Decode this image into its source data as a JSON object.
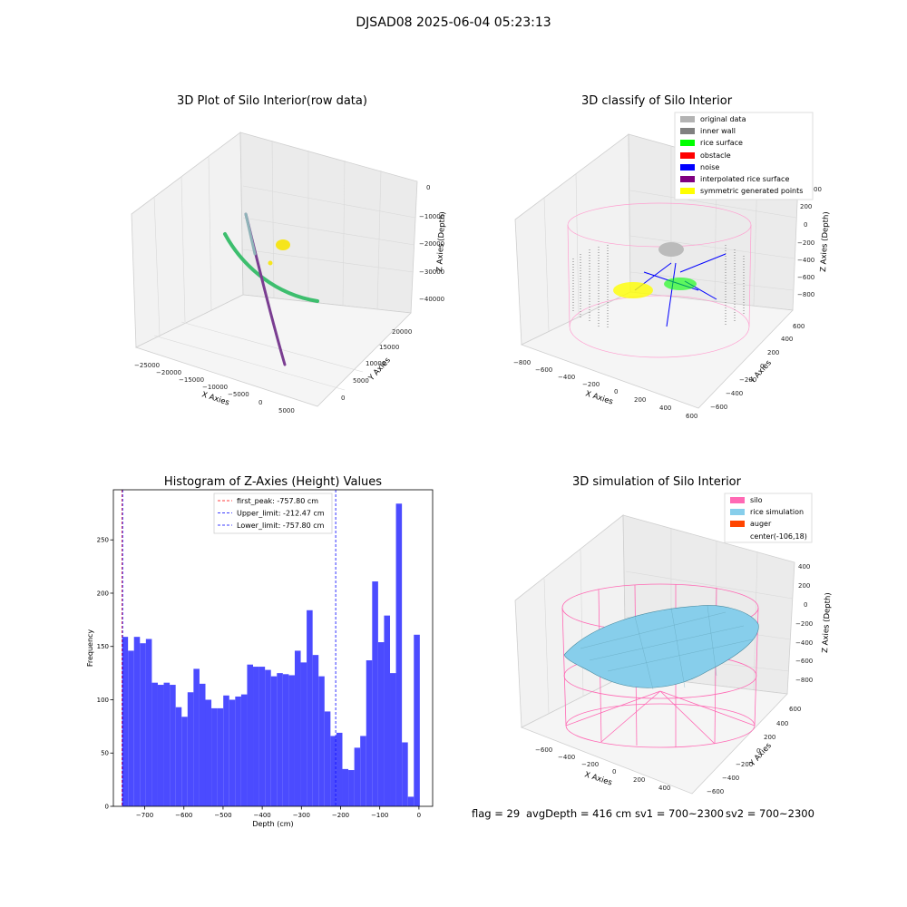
{
  "figure": {
    "suptitle": "DJSAD08 2025-06-04 05:23:13",
    "footer": {
      "flag": "flag = 29",
      "avg": "avgDepth = 416 cm",
      "sv1": "sv1 = 700~2300",
      "sv2": "sv2 = 700~2300"
    }
  },
  "colors": {
    "hist_bar": "#4b4bff",
    "peak_line": "#ff0000",
    "limit_line": "#0000ff",
    "silo": "#ff69b4",
    "rice_simulation": "#87ceeb",
    "auger": "#ff4500",
    "inner_wall": "#808080",
    "rice_surface": "#00ff00",
    "obstacle": "#ff0000",
    "noise": "#0000ff",
    "interpolated": "#800080",
    "symmetric": "#ffff00",
    "original": "#b3b3b3"
  },
  "panels": {
    "raw": {
      "title": "3D Plot of Silo Interior(row data)",
      "xlabel": "X Axies",
      "ylabel": "Y Axies",
      "zlabel": "Z Axies (Depth)",
      "xticks": [
        "−25000",
        "−20000",
        "−15000",
        "−10000",
        "−5000",
        "0",
        "5000"
      ],
      "yticks": [
        "0",
        "5000",
        "10000",
        "15000",
        "20000"
      ],
      "zticks": [
        "0",
        "−10000",
        "−20000",
        "−30000",
        "−40000"
      ]
    },
    "classify": {
      "title": "3D classify of Silo Interior",
      "xlabel": "X Axies",
      "ylabel": "Y Axies",
      "zlabel": "Z Axies (Depth)",
      "xticks": [
        "−800",
        "−600",
        "−400",
        "−200",
        "0",
        "200",
        "400",
        "600"
      ],
      "yticks": [
        "−600",
        "−400",
        "−200",
        "0",
        "200",
        "400",
        "600"
      ],
      "zticks": [
        "200",
        "0",
        "−200",
        "−400",
        "−600",
        "−800"
      ],
      "ztick_top_partial": "00",
      "legend": [
        {
          "label": "original data",
          "color": "#b3b3b3"
        },
        {
          "label": "inner wall",
          "color": "#808080"
        },
        {
          "label": "rice surface",
          "color": "#00ff00"
        },
        {
          "label": "obstacle",
          "color": "#ff0000"
        },
        {
          "label": "noise",
          "color": "#0000ff"
        },
        {
          "label": "interpolated rice surface",
          "color": "#800080"
        },
        {
          "label": "symmetric generated points",
          "color": "#ffff00"
        }
      ]
    },
    "simulation": {
      "title": "3D simulation of Silo Interior",
      "xlabel": "X Axies",
      "ylabel": "Y Axies",
      "zlabel": "Z Axies (Depth)",
      "xticks": [
        "−600",
        "−400",
        "−200",
        "0",
        "200",
        "400"
      ],
      "yticks": [
        "−600",
        "−400",
        "−200",
        "0",
        "200",
        "400",
        "600"
      ],
      "zticks": [
        "400",
        "200",
        "0",
        "−200",
        "−400",
        "−600",
        "−800"
      ],
      "legend": [
        {
          "label": "silo",
          "color": "#ff69b4"
        },
        {
          "label": "rice simulation",
          "color": "#87ceeb"
        },
        {
          "label": "auger",
          "color": "#ff4500"
        },
        {
          "label": "center(-106,18)",
          "color": ""
        }
      ]
    }
  },
  "chart_data": {
    "type": "bar",
    "title": "Histogram of Z-Axies (Height) Values",
    "xlabel": "Depth (cm)",
    "ylabel": "Frequency",
    "xlim": [
      -780,
      35
    ],
    "ylim": [
      0,
      297
    ],
    "xticks": [
      -700,
      -600,
      -500,
      -400,
      -300,
      -200,
      -100,
      0
    ],
    "yticks": [
      0,
      50,
      100,
      150,
      200,
      250
    ],
    "bin_start": -757.8,
    "bin_width": 15.2,
    "values": [
      159,
      146,
      159,
      153,
      157,
      116,
      114,
      116,
      114,
      93,
      84,
      107,
      129,
      115,
      100,
      92,
      92,
      104,
      100,
      103,
      105,
      133,
      131,
      131,
      128,
      122,
      125,
      124,
      123,
      146,
      135,
      184,
      142,
      122,
      89,
      66,
      69,
      35,
      34,
      55,
      66,
      137,
      211,
      154,
      179,
      125,
      284,
      60,
      9,
      161
    ],
    "vlines": [
      {
        "label": "first_peak: -757.80 cm",
        "x": -757.8,
        "color": "#ff0000"
      },
      {
        "label": "Upper_limit: -212.47 cm",
        "x": -212.47,
        "color": "#0000ff"
      },
      {
        "label": "Lower_limit: -757.80 cm",
        "x": -757.8,
        "color": "#0000ff"
      }
    ],
    "legend_position": "upper center"
  }
}
